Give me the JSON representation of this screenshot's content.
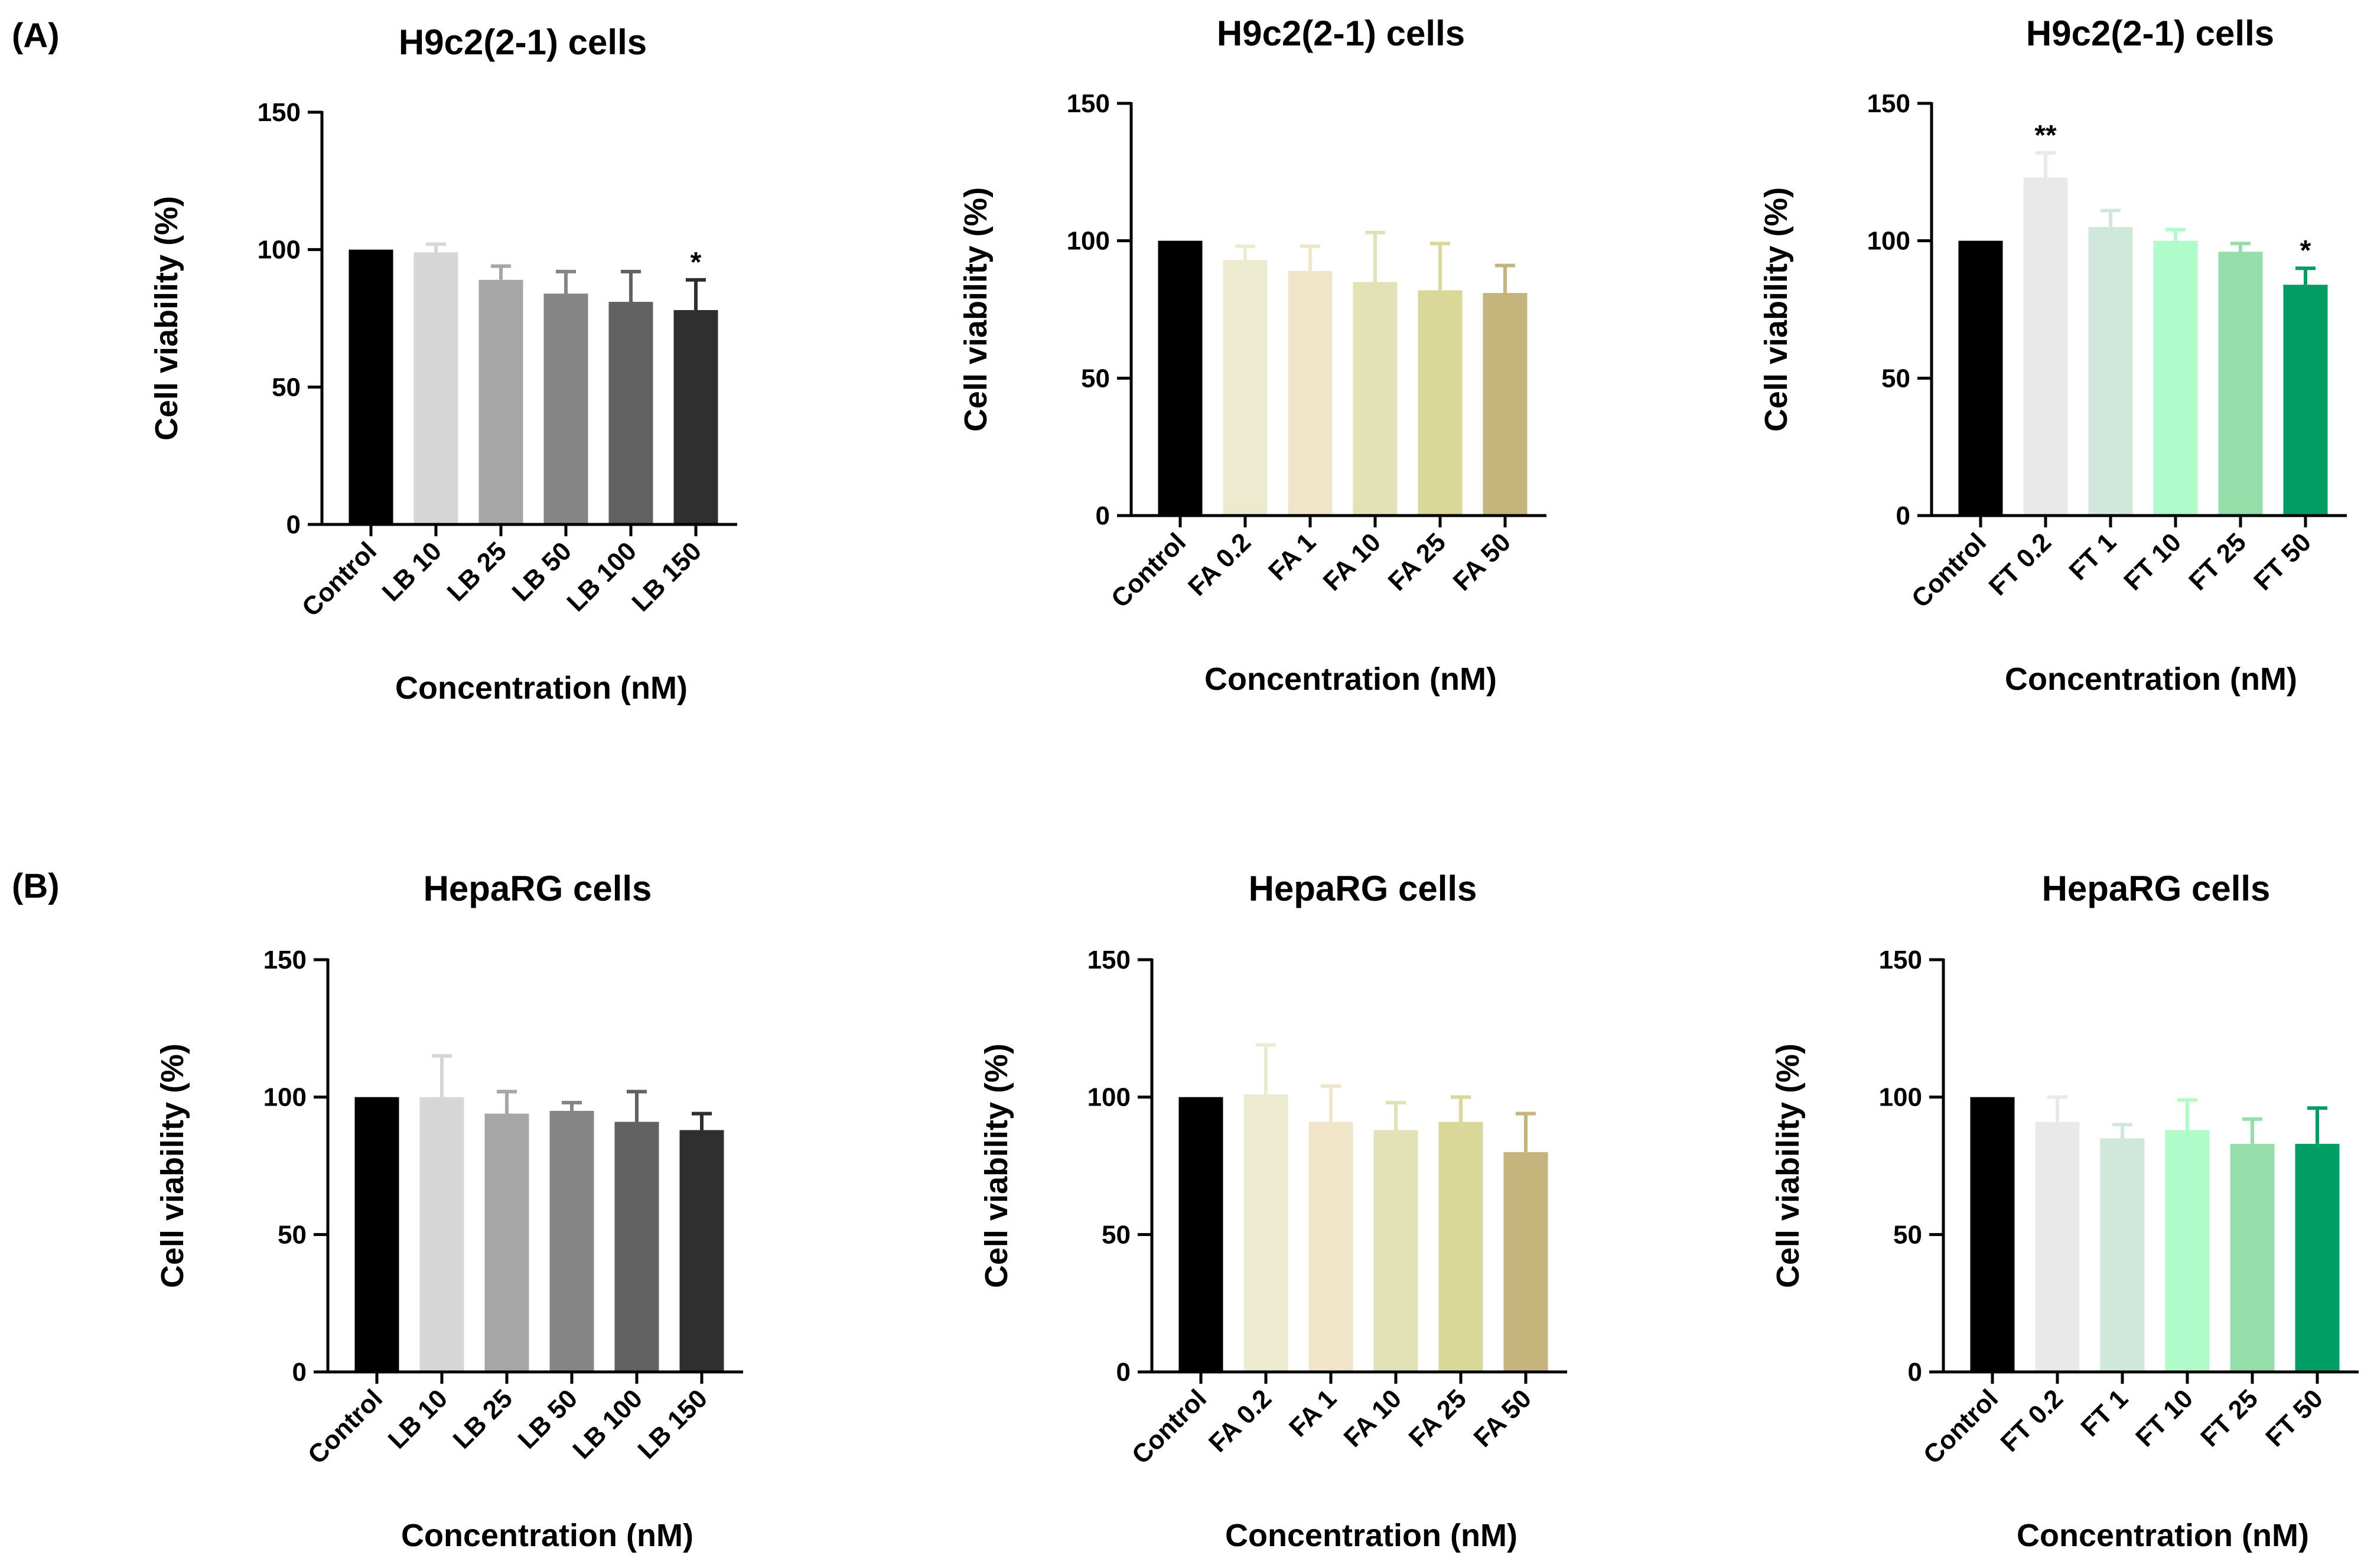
{
  "panels": [
    {
      "label": "(A)"
    },
    {
      "label": "(B)"
    }
  ],
  "chart_data": [
    {
      "type": "bar",
      "panel": "(A)",
      "title": "H9c2(2-1) cells",
      "xlabel": "Concentration (nM)",
      "ylabel": "Cell viability (%)",
      "ylim": [
        0,
        150
      ],
      "yticks": [
        0,
        50,
        100,
        150
      ],
      "categories": [
        "Control",
        "LB 10",
        "LB 25",
        "LB 50",
        "LB 100",
        "LB 150"
      ],
      "values": [
        100,
        99,
        89,
        84,
        81,
        78
      ],
      "errors": [
        0,
        3,
        5,
        8,
        11,
        11
      ],
      "significance": [
        "",
        "",
        "",
        "",
        "",
        "*"
      ],
      "colors": [
        "#000000",
        "#d6d6d6",
        "#a6a6a6",
        "#858585",
        "#626262",
        "#2f2f2f"
      ]
    },
    {
      "type": "bar",
      "panel": "(A)",
      "title": "H9c2(2-1) cells",
      "xlabel": "Concentration (nM)",
      "ylabel": "Cell viability (%)",
      "ylim": [
        0,
        150
      ],
      "yticks": [
        0,
        50,
        100,
        150
      ],
      "categories": [
        "Control",
        "FA 0.2",
        "FA 1",
        "FA 10",
        "FA 25",
        "FA 50"
      ],
      "values": [
        100,
        93,
        89,
        85,
        82,
        81
      ],
      "errors": [
        0,
        5,
        9,
        18,
        17,
        10
      ],
      "significance": [
        "",
        "",
        "",
        "",
        "",
        ""
      ],
      "colors": [
        "#000000",
        "#ecebd0",
        "#efe6c9",
        "#e3e1b6",
        "#d9d898",
        "#c5b57c"
      ]
    },
    {
      "type": "bar",
      "panel": "(A)",
      "title": "H9c2(2-1) cells",
      "xlabel": "Concentration (nM)",
      "ylabel": "Cell viability (%)",
      "ylim": [
        0,
        150
      ],
      "yticks": [
        0,
        50,
        100,
        150
      ],
      "categories": [
        "Control",
        "FT 0.2",
        "FT 1",
        "FT 10",
        "FT 25",
        "FT 50"
      ],
      "values": [
        100,
        123,
        105,
        100,
        96,
        84
      ],
      "errors": [
        0,
        9,
        6,
        4,
        3,
        6
      ],
      "significance": [
        "",
        "**",
        "",
        "",
        "",
        "*"
      ],
      "colors": [
        "#000000",
        "#e9e9e9",
        "#cfe8d9",
        "#b0fcc8",
        "#94deaa",
        "#009e63"
      ]
    },
    {
      "type": "bar",
      "panel": "(B)",
      "title": "HepaRG cells",
      "xlabel": "Concentration (nM)",
      "ylabel": "Cell viability (%)",
      "ylim": [
        0,
        150
      ],
      "yticks": [
        0,
        50,
        100,
        150
      ],
      "categories": [
        "Control",
        "LB 10",
        "LB 25",
        "LB 50",
        "LB 100",
        "LB 150"
      ],
      "values": [
        100,
        100,
        94,
        95,
        91,
        88
      ],
      "errors": [
        0,
        15,
        8,
        3,
        11,
        6
      ],
      "significance": [
        "",
        "",
        "",
        "",
        "",
        ""
      ],
      "colors": [
        "#000000",
        "#d6d6d6",
        "#a6a6a6",
        "#858585",
        "#626262",
        "#2f2f2f"
      ]
    },
    {
      "type": "bar",
      "panel": "(B)",
      "title": "HepaRG cells",
      "xlabel": "Concentration (nM)",
      "ylabel": "Cell viability (%)",
      "ylim": [
        0,
        150
      ],
      "yticks": [
        0,
        50,
        100,
        150
      ],
      "categories": [
        "Control",
        "FA 0.2",
        "FA 1",
        "FA 10",
        "FA 25",
        "FA 50"
      ],
      "values": [
        100,
        101,
        91,
        88,
        91,
        80
      ],
      "errors": [
        0,
        18,
        13,
        10,
        9,
        14
      ],
      "significance": [
        "",
        "",
        "",
        "",
        "",
        ""
      ],
      "colors": [
        "#000000",
        "#ecebd0",
        "#efe6c9",
        "#e3e1b6",
        "#d9d898",
        "#c5b57c"
      ]
    },
    {
      "type": "bar",
      "panel": "(B)",
      "title": "HepaRG cells",
      "xlabel": "Concentration (nM)",
      "ylabel": "Cell viability (%)",
      "ylim": [
        0,
        150
      ],
      "yticks": [
        0,
        50,
        100,
        150
      ],
      "categories": [
        "Control",
        "FT 0.2",
        "FT 1",
        "FT 10",
        "FT 25",
        "FT 50"
      ],
      "values": [
        100,
        91,
        85,
        88,
        83,
        83
      ],
      "errors": [
        0,
        9,
        5,
        11,
        9,
        13
      ],
      "significance": [
        "",
        "",
        "",
        "",
        "",
        ""
      ],
      "colors": [
        "#000000",
        "#e9e9e9",
        "#cfe8d9",
        "#b0fcc8",
        "#94deaa",
        "#009e63"
      ]
    }
  ]
}
